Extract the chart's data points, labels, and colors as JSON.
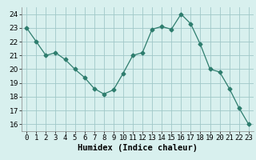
{
  "x": [
    0,
    1,
    2,
    3,
    4,
    5,
    6,
    7,
    8,
    9,
    10,
    11,
    12,
    13,
    14,
    15,
    16,
    17,
    18,
    19,
    20,
    21,
    22,
    23
  ],
  "y": [
    23,
    22,
    21,
    21.2,
    20.7,
    20,
    19.4,
    18.6,
    18.2,
    18.5,
    19.7,
    21,
    21.2,
    22.9,
    23.1,
    22.9,
    24,
    23.3,
    21.8,
    20,
    19.8,
    18.6,
    17.2,
    16
  ],
  "line_color": "#2e7d6e",
  "marker": "D",
  "marker_size": 2.5,
  "bg_color": "#d8f0ee",
  "grid_color": "#a0c8c8",
  "xlabel": "Humidex (Indice chaleur)",
  "xlim": [
    -0.5,
    23.5
  ],
  "ylim": [
    15.5,
    24.5
  ],
  "yticks": [
    16,
    17,
    18,
    19,
    20,
    21,
    22,
    23,
    24
  ],
  "xticks": [
    0,
    1,
    2,
    3,
    4,
    5,
    6,
    7,
    8,
    9,
    10,
    11,
    12,
    13,
    14,
    15,
    16,
    17,
    18,
    19,
    20,
    21,
    22,
    23
  ],
  "tick_label_fontsize": 6.5,
  "xlabel_fontsize": 7.5
}
